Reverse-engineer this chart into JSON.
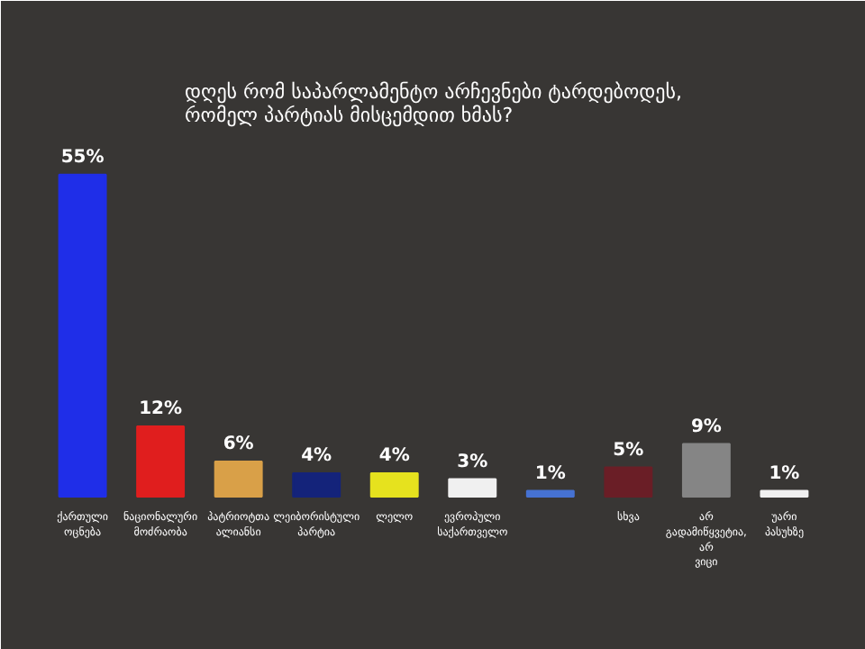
{
  "chart_data": {
    "type": "bar",
    "title": "დღეს რომ საპარლამენტო არჩევნები ტარდებოდეს,\nრომელ პარტიას მისცემდით ხმას?",
    "categories": [
      "ქართული ოცნება",
      "ნაციონალური მოძრაობა",
      "პატრიოტთა ალიანსი",
      "ლეიბორისტული პარტია",
      "ლელო",
      "ევროპული საქართველო",
      null,
      "სხვა",
      "არ გადამიწყვეტია, არ ვიცი",
      "უარი პასუხზე"
    ],
    "values": [
      55,
      12,
      6,
      4,
      4,
      3,
      1,
      5,
      9,
      1
    ],
    "value_labels": [
      "55%",
      "12%",
      "6%",
      "4%",
      "4%",
      "3%",
      "1%",
      "5%",
      "9%",
      "1%"
    ],
    "colors": [
      "#1f2ee8",
      "#e01e1e",
      "#d9a048",
      "#14237a",
      "#e6e21e",
      "#f0f0f0",
      "#4672d2",
      "#6a1e26",
      "#858585",
      "#f0f0f0"
    ],
    "data_labels": false
  }
}
